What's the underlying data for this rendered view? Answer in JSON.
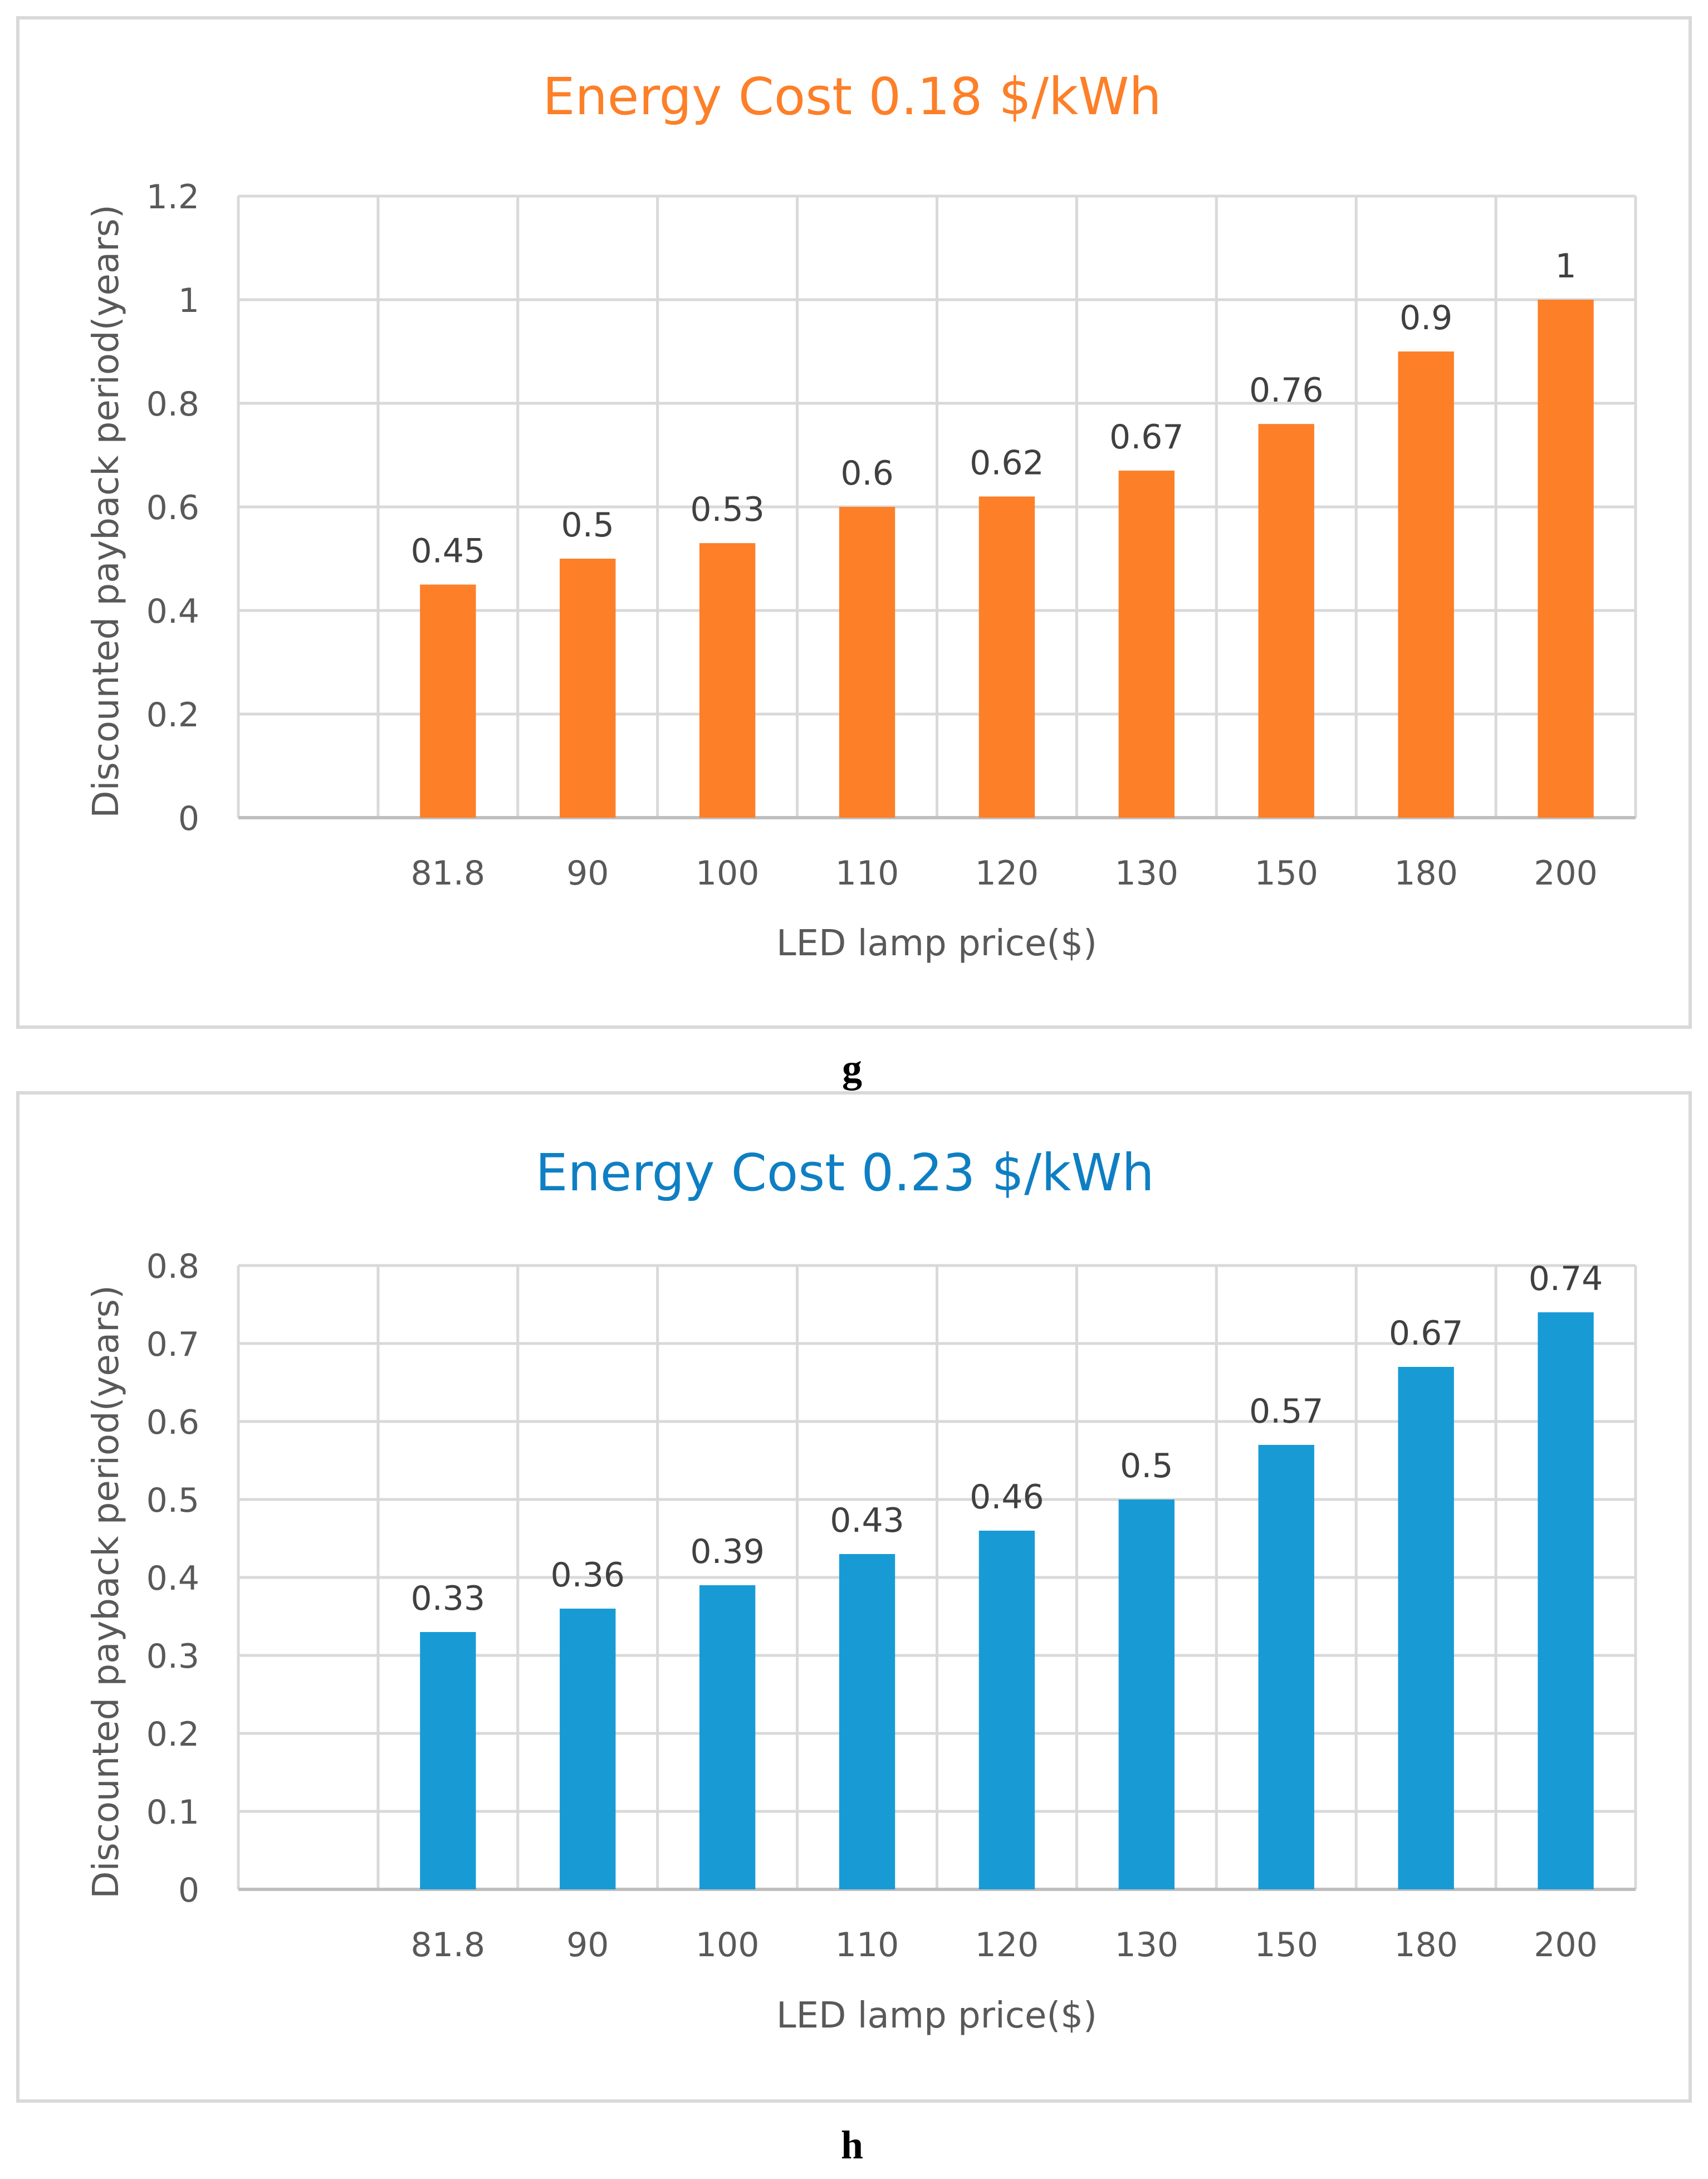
{
  "panels": [
    {
      "caption": "g",
      "color": "#FD7F28",
      "chart_data": {
        "type": "bar",
        "title": "Energy Cost 0.18 $/kWh",
        "xlabel": "LED lamp price($)",
        "ylabel": "Discounted payback period(years)",
        "categories": [
          "",
          "81.8",
          "90",
          "100",
          "110",
          "120",
          "130",
          "150",
          "180",
          "200"
        ],
        "values": [
          null,
          0.45,
          0.5,
          0.53,
          0.6,
          0.62,
          0.67,
          0.76,
          0.9,
          1
        ],
        "value_labels": [
          "",
          "0.45",
          "0.5",
          "0.53",
          "0.6",
          "0.62",
          "0.67",
          "0.76",
          "0.9",
          "1"
        ],
        "ylim": [
          0,
          1.2
        ],
        "yticks": [
          0,
          0.2,
          0.4,
          0.6,
          0.8,
          1,
          1.2
        ],
        "ytick_labels": [
          "0",
          "0.2",
          "0.4",
          "0.6",
          "0.8",
          "1",
          "1.2"
        ],
        "grid": true
      }
    },
    {
      "caption": "h",
      "color": "#189BD5",
      "chart_data": {
        "type": "bar",
        "title": "Energy Cost 0.23 $/kWh",
        "xlabel": "LED lamp price($)",
        "ylabel": "Discounted payback period(years)",
        "categories": [
          "",
          "81.8",
          "90",
          "100",
          "110",
          "120",
          "130",
          "150",
          "180",
          "200"
        ],
        "values": [
          null,
          0.33,
          0.36,
          0.39,
          0.43,
          0.46,
          0.5,
          0.57,
          0.67,
          0.74
        ],
        "value_labels": [
          "",
          "0.33",
          "0.36",
          "0.39",
          "0.43",
          "0.46",
          "0.5",
          "0.57",
          "0.67",
          "0.74"
        ],
        "ylim": [
          0,
          0.8
        ],
        "yticks": [
          0,
          0.1,
          0.2,
          0.3,
          0.4,
          0.5,
          0.6,
          0.7,
          0.8
        ],
        "ytick_labels": [
          "0",
          "0.1",
          "0.2",
          "0.3",
          "0.4",
          "0.5",
          "0.6",
          "0.7",
          "0.8"
        ],
        "grid": true
      }
    }
  ]
}
